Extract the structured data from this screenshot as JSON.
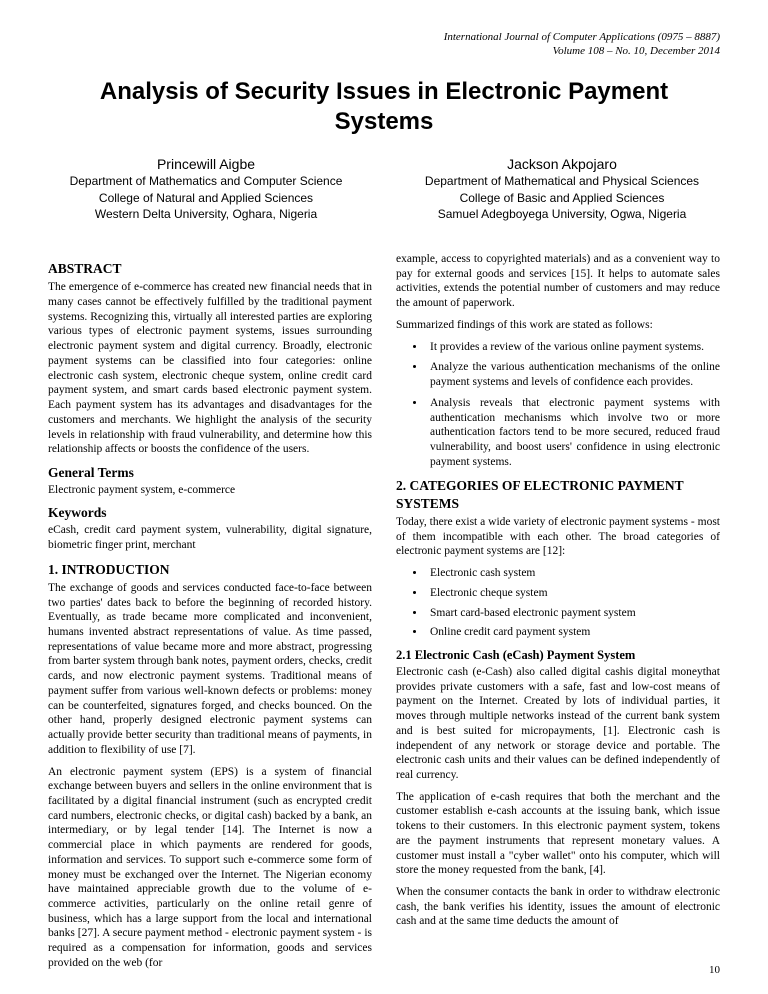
{
  "journal": {
    "name": "International Journal of Computer Applications (0975 – 8887)",
    "issue": "Volume 108 – No. 10, December 2014"
  },
  "title": "Analysis of Security Issues in Electronic Payment Systems",
  "authors": [
    {
      "name": "Princewill Aigbe",
      "dept": "Department of Mathematics and Computer Science",
      "college": "College of Natural and Applied Sciences",
      "univ": "Western Delta University, Oghara, Nigeria"
    },
    {
      "name": "Jackson Akpojaro",
      "dept": "Department of Mathematical and Physical Sciences",
      "college": "College of Basic and Applied Sciences",
      "univ": "Samuel Adegboyega University, Ogwa, Nigeria"
    }
  ],
  "abstract": {
    "heading": "ABSTRACT",
    "text": "The emergence of e-commerce has created new financial needs that in many cases cannot be effectively fulfilled by the traditional payment systems. Recognizing this, virtually all interested parties are exploring various types of electronic payment systems, issues surrounding electronic payment system and digital currency. Broadly, electronic payment systems can be classified into four categories: online electronic cash system, electronic cheque system, online credit card payment system, and smart cards based electronic payment system. Each payment system has its advantages and disadvantages for the customers and merchants. We highlight the analysis of the security levels in relationship with fraud vulnerability, and determine how this relationship affects or boosts the confidence of the users."
  },
  "general_terms": {
    "heading": "General Terms",
    "text": "Electronic payment system, e-commerce"
  },
  "keywords": {
    "heading": "Keywords",
    "text": "eCash, credit card payment system, vulnerability, digital signature, biometric finger print, merchant"
  },
  "intro": {
    "heading": "1.  INTRODUCTION",
    "p1": "The exchange of goods and services conducted face-to-face between two parties' dates back to before the beginning of recorded history. Eventually, as trade became more complicated and inconvenient, humans invented abstract representations of value. As time passed, representations of value became more and more abstract, progressing from barter system through bank notes, payment orders, checks, credit cards, and now electronic payment systems. Traditional means of payment suffer from various well-known defects or problems: money can be counterfeited, signatures forged, and checks bounced. On the other hand, properly designed electronic payment systems can actually provide better security than traditional means of payments, in addition to flexibility of use [7].",
    "p2": "An electronic payment system (EPS) is a system of financial exchange between buyers and sellers in the online environment that is facilitated by a digital financial instrument (such as encrypted credit card numbers, electronic checks, or digital cash) backed by a bank, an intermediary, or by legal tender [14]. The Internet is now a commercial place in which payments are rendered for goods, information and services. To support such e-commerce some form of money must be exchanged over the Internet. The Nigerian economy have maintained appreciable growth due to the volume of e-commerce activities, particularly on the online retail genre of business, which has a large support from the local and international   banks [27]. A secure payment method - electronic payment system - is required as a compensation for information, goods and services provided on the web (for"
  },
  "right": {
    "p0": "example, access to copyrighted materials) and as a convenient way to pay for external goods and services [15]. It helps to automate sales activities, extends the potential number of customers and may reduce the amount of paperwork.",
    "summary_lead": "Summarized findings of this work are stated as follows:",
    "findings": [
      "It provides a review of the various online payment systems.",
      "Analyze the various authentication mechanisms of the online payment systems and levels of confidence each provides.",
      "Analysis reveals that electronic payment systems with authentication mechanisms which involve two or more authentication factors tend to be more secured, reduced fraud vulnerability, and boost users' confidence in using electronic payment systems."
    ]
  },
  "categories": {
    "heading": "2.  CATEGORIES OF ELECTRONIC PAYMENT SYSTEMS",
    "lead": "Today, there exist a wide variety of electronic payment systems - most of them incompatible with each other. The broad categories of electronic payment systems are [12]:",
    "items": [
      "Electronic cash system",
      "Electronic cheque system",
      "Smart card-based electronic payment system",
      "Online credit card payment system"
    ]
  },
  "ecash": {
    "heading": "2.1 Electronic Cash (eCash) Payment System",
    "p1": "Electronic cash (e-Cash) also called digital cashis digital moneythat provides private customers with a safe, fast and low-cost means of payment on the Internet. Created by lots of individual parties, it moves through multiple networks instead of the current bank system and is best suited for micropayments, [1]. Electronic cash is independent of any network or storage device and portable. The electronic cash units and their values can be defined independently of real currency.",
    "p2": "The application of e-cash requires that both the merchant and the customer establish e-cash accounts at the issuing bank, which issue tokens to their customers. In this electronic payment system, tokens are the payment instruments that represent monetary values. A customer must install a \"cyber wallet\" onto his computer, which will store the money requested from the bank,   [4].",
    "p3": "When the consumer contacts the bank in order to withdraw electronic cash, the bank verifies his identity, issues the amount of electronic cash and at the same time deducts the amount of"
  },
  "page_number": "10"
}
